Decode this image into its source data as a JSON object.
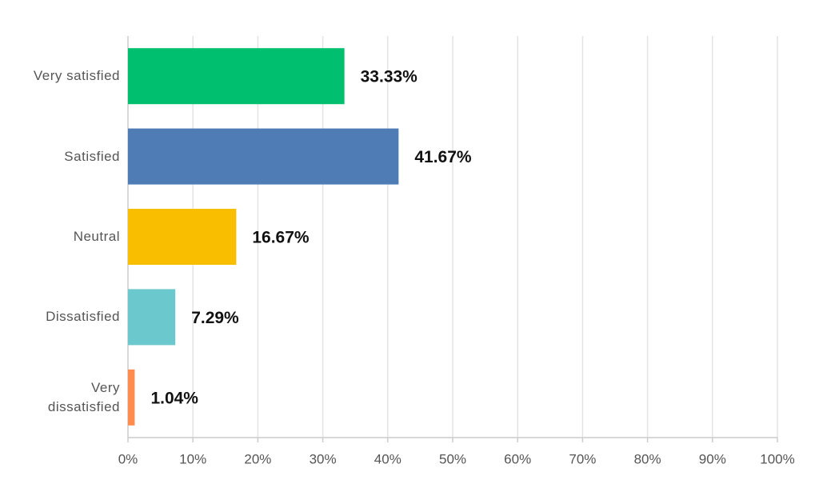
{
  "chart_data": {
    "type": "bar",
    "orientation": "horizontal",
    "categories": [
      "Very satisfied",
      "Satisfied",
      "Neutral",
      "Dissatisfied",
      "Very dissatisfied"
    ],
    "values": [
      33.33,
      41.67,
      16.67,
      7.29,
      1.04
    ],
    "value_labels": [
      "33.33%",
      "41.67%",
      "16.67%",
      "7.29%",
      "1.04%"
    ],
    "colors": [
      "#00bf6f",
      "#507cb6",
      "#f9be00",
      "#6bc8cd",
      "#ff8b4f"
    ],
    "xlim": [
      0,
      100
    ],
    "xticks": [
      {
        "value": 0,
        "label": "0%"
      },
      {
        "value": 10,
        "label": "10%"
      },
      {
        "value": 20,
        "label": "20%"
      },
      {
        "value": 30,
        "label": "30%"
      },
      {
        "value": 40,
        "label": "40%"
      },
      {
        "value": 50,
        "label": "50%"
      },
      {
        "value": 60,
        "label": "60%"
      },
      {
        "value": 70,
        "label": "70%"
      },
      {
        "value": 80,
        "label": "80%"
      },
      {
        "value": 90,
        "label": "90%"
      },
      {
        "value": 100,
        "label": "100%"
      }
    ],
    "grid": true
  }
}
